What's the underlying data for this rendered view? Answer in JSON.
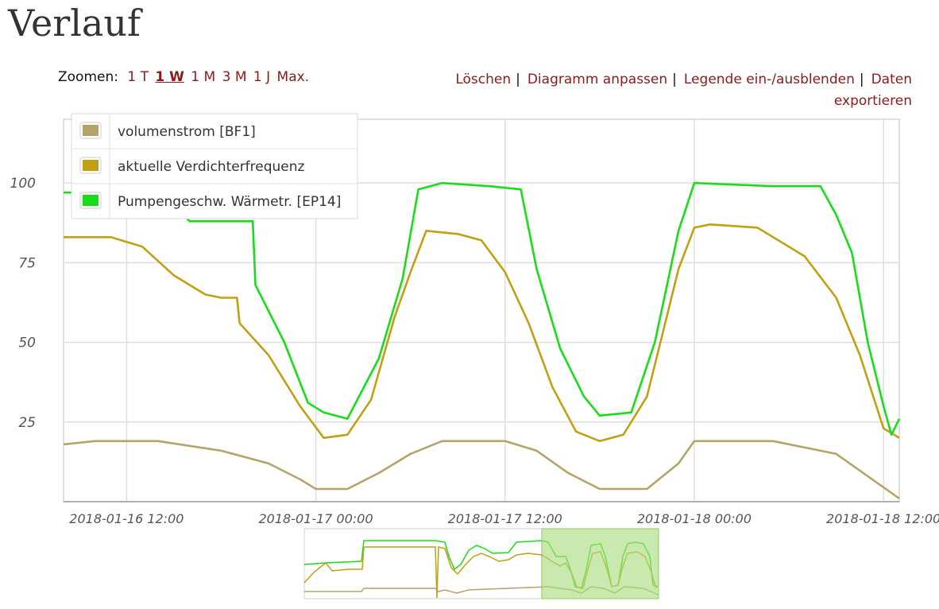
{
  "page": {
    "title": "Verlauf"
  },
  "zoom": {
    "label": "Zoomen:",
    "options": [
      "1 T",
      "1 W",
      "1 M",
      "3 M",
      "1 J",
      "Max."
    ],
    "active": "1 W"
  },
  "actions": {
    "delete": "Löschen",
    "customize": "Diagramm anpassen",
    "legend_toggle": "Legende ein-/ausblenden",
    "export_line1": "Daten",
    "export_line2": "exportieren"
  },
  "colors": {
    "volumenstrom": "#b5a46a",
    "verdichter": "#c2a014",
    "pumpe": "#19dd19",
    "navigator_window": "#a8dc7c",
    "grid": "#dedede",
    "link": "#8b1a1a"
  },
  "chart_data": {
    "type": "line",
    "x_axis": {
      "type": "datetime",
      "range": [
        "2018-01-16 08:00",
        "2018-01-18 13:00"
      ],
      "ticks": [
        "2018-01-16 12:00",
        "2018-01-17 00:00",
        "2018-01-17 12:00",
        "2018-01-18 00:00",
        "2018-01-18 12:00"
      ]
    },
    "y_axis": {
      "ticks": [
        25,
        50,
        75,
        100
      ],
      "range": [
        0,
        120
      ]
    },
    "grid": true,
    "legend": {
      "position": "top-left"
    },
    "series": [
      {
        "name": "volumenstrom [BF1]",
        "key": "volumenstrom",
        "points": [
          [
            "2018-01-16 08:00",
            18
          ],
          [
            "2018-01-16 10:00",
            19
          ],
          [
            "2018-01-16 14:00",
            19
          ],
          [
            "2018-01-16 18:00",
            16
          ],
          [
            "2018-01-16 21:00",
            12
          ],
          [
            "2018-01-16 23:00",
            7
          ],
          [
            "2018-01-17 00:00",
            4
          ],
          [
            "2018-01-17 02:00",
            4
          ],
          [
            "2018-01-17 04:00",
            9
          ],
          [
            "2018-01-17 06:00",
            15
          ],
          [
            "2018-01-17 08:00",
            19
          ],
          [
            "2018-01-17 12:00",
            19
          ],
          [
            "2018-01-17 14:00",
            16
          ],
          [
            "2018-01-17 16:00",
            9
          ],
          [
            "2018-01-17 18:00",
            4
          ],
          [
            "2018-01-17 21:00",
            4
          ],
          [
            "2018-01-17 23:00",
            12
          ],
          [
            "2018-01-18 00:00",
            19
          ],
          [
            "2018-01-18 05:00",
            19
          ],
          [
            "2018-01-18 09:00",
            15
          ],
          [
            "2018-01-18 11:00",
            8
          ],
          [
            "2018-01-18 13:00",
            1
          ]
        ]
      },
      {
        "name": "aktuelle Verdichterfrequenz",
        "key": "verdichter",
        "points": [
          [
            "2018-01-16 08:00",
            83
          ],
          [
            "2018-01-16 11:00",
            83
          ],
          [
            "2018-01-16 13:00",
            80
          ],
          [
            "2018-01-16 15:00",
            71
          ],
          [
            "2018-01-16 17:00",
            65
          ],
          [
            "2018-01-16 18:00",
            64
          ],
          [
            "2018-01-16 19:00",
            64
          ],
          [
            "2018-01-16 19:10",
            56
          ],
          [
            "2018-01-16 21:00",
            46
          ],
          [
            "2018-01-16 23:00",
            30
          ],
          [
            "2018-01-17 00:30",
            20
          ],
          [
            "2018-01-17 02:00",
            21
          ],
          [
            "2018-01-17 03:30",
            32
          ],
          [
            "2018-01-17 05:00",
            58
          ],
          [
            "2018-01-17 06:00",
            72
          ],
          [
            "2018-01-17 07:00",
            85
          ],
          [
            "2018-01-17 09:00",
            84
          ],
          [
            "2018-01-17 10:30",
            82
          ],
          [
            "2018-01-17 12:00",
            72
          ],
          [
            "2018-01-17 13:30",
            56
          ],
          [
            "2018-01-17 15:00",
            36
          ],
          [
            "2018-01-17 16:30",
            22
          ],
          [
            "2018-01-17 18:00",
            19
          ],
          [
            "2018-01-17 19:30",
            21
          ],
          [
            "2018-01-17 21:00",
            33
          ],
          [
            "2018-01-17 22:00",
            53
          ],
          [
            "2018-01-17 23:00",
            73
          ],
          [
            "2018-01-18 00:00",
            86
          ],
          [
            "2018-01-18 01:00",
            87
          ],
          [
            "2018-01-18 04:00",
            86
          ],
          [
            "2018-01-18 07:00",
            77
          ],
          [
            "2018-01-18 09:00",
            64
          ],
          [
            "2018-01-18 10:30",
            46
          ],
          [
            "2018-01-18 12:00",
            23
          ],
          [
            "2018-01-18 13:00",
            20
          ]
        ]
      },
      {
        "name": "Pumpengeschw. Wärmetr. [EP14]",
        "key": "pumpe",
        "points": [
          [
            "2018-01-16 08:00",
            97
          ],
          [
            "2018-01-16 12:00",
            97
          ],
          [
            "2018-01-16 15:00",
            93
          ],
          [
            "2018-01-16 16:00",
            88
          ],
          [
            "2018-01-16 20:00",
            88
          ],
          [
            "2018-01-16 20:10",
            68
          ],
          [
            "2018-01-16 22:00",
            50
          ],
          [
            "2018-01-16 23:30",
            31
          ],
          [
            "2018-01-17 00:30",
            28
          ],
          [
            "2018-01-17 02:00",
            26
          ],
          [
            "2018-01-17 04:00",
            45
          ],
          [
            "2018-01-17 05:30",
            70
          ],
          [
            "2018-01-17 06:30",
            98
          ],
          [
            "2018-01-17 08:00",
            100
          ],
          [
            "2018-01-17 11:00",
            99
          ],
          [
            "2018-01-17 13:00",
            98
          ],
          [
            "2018-01-17 14:00",
            73
          ],
          [
            "2018-01-17 15:30",
            48
          ],
          [
            "2018-01-17 17:00",
            33
          ],
          [
            "2018-01-17 18:00",
            27
          ],
          [
            "2018-01-17 20:00",
            28
          ],
          [
            "2018-01-17 21:30",
            50
          ],
          [
            "2018-01-17 23:00",
            85
          ],
          [
            "2018-01-18 00:00",
            100
          ],
          [
            "2018-01-18 05:00",
            99
          ],
          [
            "2018-01-18 08:00",
            99
          ],
          [
            "2018-01-18 09:00",
            90
          ],
          [
            "2018-01-18 10:00",
            78
          ],
          [
            "2018-01-18 11:00",
            50
          ],
          [
            "2018-01-18 12:00",
            30
          ],
          [
            "2018-01-18 12:30",
            21
          ],
          [
            "2018-01-18 13:00",
            26
          ]
        ]
      }
    ]
  }
}
